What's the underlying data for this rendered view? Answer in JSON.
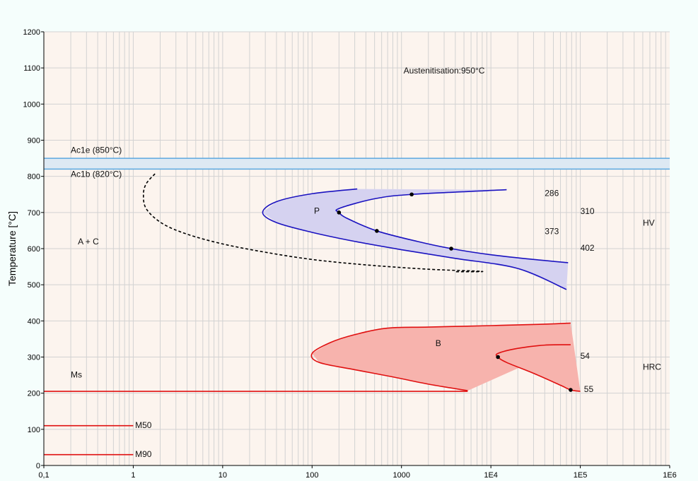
{
  "chart_data": {
    "type": "line",
    "title": "",
    "xlabel": "",
    "ylabel": "Temperature [°C]",
    "x_scale": "log",
    "xlim": [
      0.1,
      1000000
    ],
    "ylim": [
      0,
      1200
    ],
    "grid": true,
    "x_ticks": [
      {
        "v": 0.1,
        "label": "0,1"
      },
      {
        "v": 1,
        "label": "1"
      },
      {
        "v": 10,
        "label": "10"
      },
      {
        "v": 100,
        "label": "100"
      },
      {
        "v": 1000,
        "label": "1000"
      },
      {
        "v": 10000,
        "label": "1E4"
      },
      {
        "v": 100000,
        "label": "1E5"
      },
      {
        "v": 1000000,
        "label": "1E6"
      }
    ],
    "y_ticks": [
      0,
      100,
      200,
      300,
      400,
      500,
      600,
      700,
      800,
      900,
      1000,
      1100,
      1200
    ],
    "colors": {
      "ac_band_fill": "#dde9f3",
      "ac_band_line": "#5ba8e0",
      "pearlite_line": "#1a12c0",
      "pearlite_fill": "#d5d2f0",
      "bainite_line": "#e01010",
      "bainite_fill": "#f7b3ad",
      "martensite_line": "#e01010",
      "dashed_curve": "#000000",
      "plot_bg": "#fcf4ee",
      "grid": "#d2d2d2"
    },
    "ac_band": {
      "lower": 820,
      "upper": 850
    },
    "series": [
      {
        "key": "carbide_start",
        "style": "dashed",
        "points": [
          [
            1.75,
            807
          ],
          [
            1.4,
            780
          ],
          [
            1.3,
            750
          ],
          [
            1.4,
            710
          ],
          [
            2.1,
            670
          ],
          [
            4,
            640
          ],
          [
            10,
            613
          ],
          [
            30,
            590
          ],
          [
            100,
            570
          ],
          [
            400,
            555
          ],
          [
            2000,
            543
          ],
          [
            8000,
            537
          ],
          [
            4000,
            536
          ]
        ]
      },
      {
        "key": "pearlite_start",
        "style": "solid",
        "points": [
          [
            320,
            765
          ],
          [
            100,
            752
          ],
          [
            40,
            730
          ],
          [
            28,
            700
          ],
          [
            40,
            672
          ],
          [
            100,
            645
          ],
          [
            300,
            620
          ],
          [
            1000,
            597
          ],
          [
            4000,
            573
          ],
          [
            20000,
            545
          ],
          [
            70000,
            487
          ]
        ]
      },
      {
        "key": "pearlite_end",
        "style": "solid",
        "points": [
          [
            15000,
            763
          ],
          [
            1300,
            750
          ],
          [
            500,
            738
          ],
          [
            200,
            711
          ],
          [
            200,
            700
          ],
          [
            250,
            683
          ],
          [
            530,
            649
          ],
          [
            1500,
            620
          ],
          [
            3600,
            600
          ],
          [
            10000,
            583
          ],
          [
            30000,
            570
          ],
          [
            73000,
            561
          ]
        ]
      },
      {
        "key": "bainite_start",
        "style": "solid",
        "points": [
          [
            5500,
            207
          ],
          [
            2000,
            225
          ],
          [
            800,
            245
          ],
          [
            300,
            265
          ],
          [
            120,
            285
          ],
          [
            100,
            310
          ],
          [
            160,
            340
          ],
          [
            300,
            362
          ],
          [
            700,
            380
          ],
          [
            2000,
            383
          ],
          [
            10000,
            387
          ],
          [
            40000,
            391
          ],
          [
            78000,
            394
          ]
        ]
      },
      {
        "key": "bainite_end",
        "style": "solid",
        "points": [
          [
            78000,
            334
          ],
          [
            40000,
            333
          ],
          [
            20000,
            324
          ],
          [
            12000,
            310
          ],
          [
            12000,
            300
          ],
          [
            15000,
            285
          ],
          [
            30000,
            255
          ],
          [
            60000,
            222
          ],
          [
            78000,
            209
          ],
          [
            100000,
            205
          ]
        ]
      },
      {
        "key": "ms_line",
        "style": "solid",
        "points": [
          [
            0.1,
            205
          ],
          [
            5500,
            205
          ]
        ]
      },
      {
        "key": "m50_line",
        "style": "solid",
        "points": [
          [
            0.1,
            110
          ],
          [
            1,
            110
          ]
        ]
      },
      {
        "key": "m90_line",
        "style": "solid",
        "points": [
          [
            0.1,
            30
          ],
          [
            1,
            30
          ]
        ]
      }
    ],
    "markers": [
      {
        "x": 1300,
        "y": 750
      },
      {
        "x": 200,
        "y": 700
      },
      {
        "x": 530,
        "y": 649
      },
      {
        "x": 3600,
        "y": 600
      },
      {
        "x": 12000,
        "y": 300
      },
      {
        "x": 78000,
        "y": 209
      }
    ],
    "annotations": [
      {
        "key": "austenitisation",
        "text": "Austenitisation:950°C",
        "x": 3000,
        "y": 1085,
        "anchor": "middle"
      },
      {
        "key": "ac1e",
        "text": "Ac1e (850°C)",
        "x": 0.2,
        "y": 865,
        "anchor": "start"
      },
      {
        "key": "ac1b",
        "text": "Ac1b (820°C)",
        "x": 0.2,
        "y": 798,
        "anchor": "start"
      },
      {
        "key": "a-plus-c",
        "text": "A + C",
        "x": 0.24,
        "y": 612,
        "anchor": "start"
      },
      {
        "key": "p-label",
        "text": "P",
        "x": 105,
        "y": 697,
        "anchor": "start"
      },
      {
        "key": "b-label",
        "text": "B",
        "x": 2400,
        "y": 330,
        "anchor": "start"
      },
      {
        "key": "ms",
        "text": "Ms",
        "x": 0.2,
        "y": 243,
        "anchor": "start"
      },
      {
        "key": "m50",
        "text": "M50",
        "x": 1.05,
        "y": 104,
        "anchor": "start"
      },
      {
        "key": "m90",
        "text": "M90",
        "x": 1.05,
        "y": 23,
        "anchor": "start"
      },
      {
        "key": "hv-286",
        "text": "286",
        "x": 40000,
        "y": 746,
        "anchor": "start"
      },
      {
        "key": "hv-310",
        "text": "310",
        "x": 100000,
        "y": 696,
        "anchor": "start"
      },
      {
        "key": "hv-373",
        "text": "373",
        "x": 40000,
        "y": 640,
        "anchor": "start"
      },
      {
        "key": "hv-402",
        "text": "402",
        "x": 100000,
        "y": 594,
        "anchor": "start"
      },
      {
        "key": "hv",
        "text": "HV",
        "x": 500000,
        "y": 664,
        "anchor": "start"
      },
      {
        "key": "hrc-54",
        "text": "54",
        "x": 100000,
        "y": 295,
        "anchor": "start"
      },
      {
        "key": "hrc-55",
        "text": "55",
        "x": 110000,
        "y": 203,
        "anchor": "start"
      },
      {
        "key": "hrc",
        "text": "HRC",
        "x": 500000,
        "y": 265,
        "anchor": "start"
      }
    ]
  }
}
